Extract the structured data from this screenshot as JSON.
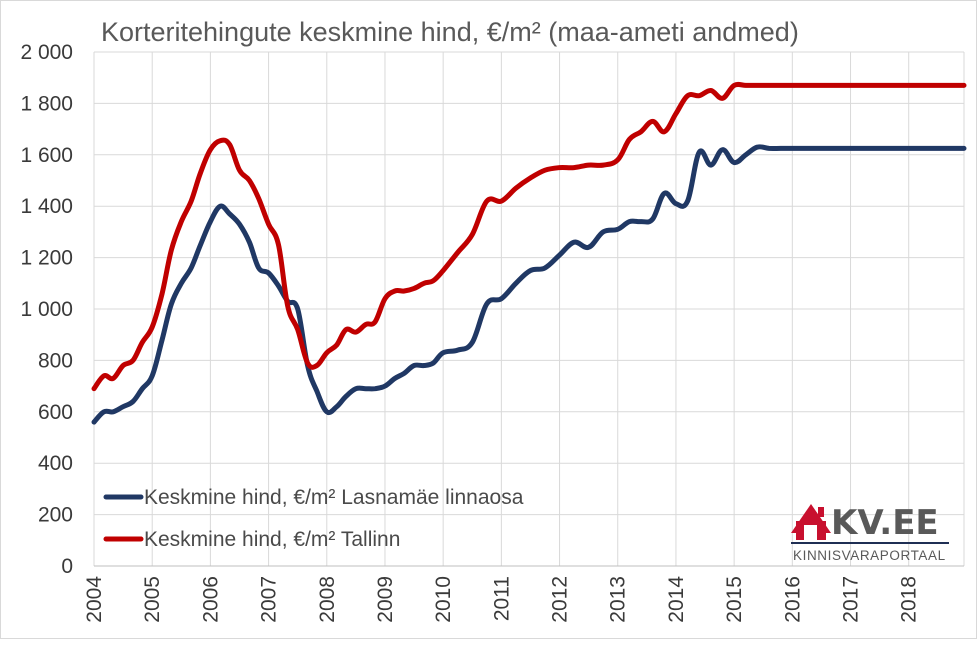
{
  "chart_data": {
    "type": "line",
    "title": "Korteritehingute keskmine hind, €/m² (maa-ameti andmed)",
    "xlabel": "",
    "ylabel": "",
    "ylim": [
      0,
      2000
    ],
    "yticks": [
      0,
      200,
      400,
      600,
      800,
      1000,
      1200,
      1400,
      1600,
      1800,
      2000
    ],
    "ytick_labels": [
      "0",
      "200",
      "400",
      "600",
      "800",
      "1 000",
      "1 200",
      "1 400",
      "1 600",
      "1 800",
      "2 000"
    ],
    "xlim": [
      2004,
      2018.95
    ],
    "xticks": [
      2004,
      2005,
      2006,
      2007,
      2008,
      2009,
      2010,
      2011,
      2012,
      2013,
      2014,
      2015,
      2016,
      2017,
      2018
    ],
    "xtick_labels": [
      "2004",
      "2005",
      "2006",
      "2007",
      "2008",
      "2009",
      "2010",
      "2011",
      "2012",
      "2013",
      "2014",
      "2015",
      "2016",
      "2017",
      "2018"
    ],
    "grid": true,
    "legend_position": "bottom-left",
    "series": [
      {
        "name": "Keskmine hind, €/m² Lasnamäe linnaosa",
        "color": "#203864",
        "x": [
          2004.0,
          2004.17,
          2004.33,
          2004.5,
          2004.67,
          2004.83,
          2005.0,
          2005.17,
          2005.33,
          2005.5,
          2005.67,
          2005.83,
          2006.0,
          2006.17,
          2006.33,
          2006.5,
          2006.67,
          2006.83,
          2007.0,
          2007.17,
          2007.33,
          2007.5,
          2007.67,
          2007.83,
          2008.0,
          2008.17,
          2008.33,
          2008.5,
          2008.67,
          2008.83,
          2009.0,
          2009.17,
          2009.33,
          2009.5,
          2009.67,
          2009.83,
          2010.0,
          2010.25,
          2010.5,
          2010.75,
          2011.0,
          2011.25,
          2011.5,
          2011.75,
          2012.0,
          2012.25,
          2012.5,
          2012.75,
          2013.0,
          2013.2,
          2013.4,
          2013.6,
          2013.8,
          2014.0,
          2014.2,
          2014.4,
          2014.6,
          2014.8,
          2015.0,
          2015.2,
          2015.4,
          2015.6,
          2015.8,
          2016.0,
          2016.2,
          2016.4,
          2016.6,
          2016.8,
          2017.0,
          2017.2,
          2017.4,
          2017.6,
          2017.8,
          2018.0,
          2018.2,
          2018.4,
          2018.6,
          2018.8,
          2018.95
        ],
        "values": [
          560,
          600,
          600,
          620,
          640,
          690,
          740,
          880,
          1020,
          1100,
          1160,
          1250,
          1340,
          1400,
          1370,
          1330,
          1260,
          1160,
          1140,
          1090,
          1030,
          1000,
          780,
          680,
          600,
          620,
          660,
          690,
          690,
          690,
          700,
          730,
          750,
          780,
          780,
          790,
          830,
          840,
          870,
          1020,
          1040,
          1100,
          1150,
          1160,
          1210,
          1260,
          1240,
          1300,
          1310,
          1340,
          1340,
          1350,
          1450,
          1410,
          1420,
          1610,
          1560,
          1620,
          1570,
          1600,
          1630,
          1625,
          1625,
          1625,
          1625,
          1625,
          1625,
          1625,
          1625,
          1625,
          1625,
          1625,
          1625,
          1625,
          1625,
          1625,
          1625,
          1625,
          1625
        ]
      },
      {
        "name": "Keskmine hind, €/m² Tallinn",
        "color": "#c00000",
        "x": [
          2004.0,
          2004.17,
          2004.33,
          2004.5,
          2004.67,
          2004.83,
          2005.0,
          2005.17,
          2005.33,
          2005.5,
          2005.67,
          2005.83,
          2006.0,
          2006.17,
          2006.33,
          2006.5,
          2006.67,
          2006.83,
          2007.0,
          2007.17,
          2007.33,
          2007.5,
          2007.67,
          2007.83,
          2008.0,
          2008.17,
          2008.33,
          2008.5,
          2008.67,
          2008.83,
          2009.0,
          2009.17,
          2009.33,
          2009.5,
          2009.67,
          2009.83,
          2010.0,
          2010.25,
          2010.5,
          2010.75,
          2011.0,
          2011.25,
          2011.5,
          2011.75,
          2012.0,
          2012.25,
          2012.5,
          2012.75,
          2013.0,
          2013.2,
          2013.4,
          2013.6,
          2013.8,
          2014.0,
          2014.2,
          2014.4,
          2014.6,
          2014.8,
          2015.0,
          2015.2,
          2015.4,
          2015.6,
          2015.8,
          2016.0,
          2016.2,
          2016.4,
          2016.6,
          2016.8,
          2017.0,
          2017.2,
          2017.4,
          2017.6,
          2017.8,
          2018.0,
          2018.2,
          2018.4,
          2018.6,
          2018.8,
          2018.95
        ],
        "values": [
          690,
          740,
          730,
          780,
          800,
          870,
          930,
          1060,
          1230,
          1340,
          1420,
          1530,
          1620,
          1655,
          1640,
          1540,
          1500,
          1430,
          1330,
          1250,
          1010,
          920,
          790,
          780,
          830,
          860,
          920,
          910,
          940,
          950,
          1040,
          1070,
          1070,
          1080,
          1100,
          1110,
          1150,
          1220,
          1290,
          1420,
          1420,
          1470,
          1510,
          1540,
          1550,
          1550,
          1560,
          1560,
          1580,
          1660,
          1690,
          1730,
          1690,
          1760,
          1830,
          1830,
          1850,
          1820,
          1870,
          1870,
          1870,
          1870,
          1870,
          1870,
          1870,
          1870,
          1870,
          1870,
          1870,
          1870,
          1870,
          1870,
          1870,
          1870,
          1870,
          1870,
          1870,
          1870,
          1870
        ]
      }
    ]
  },
  "logo": {
    "name": "KV.EE",
    "tagline": "KINNISVARAPORTAAL",
    "colors": {
      "red": "#c8102e",
      "navy": "#1f2f54"
    }
  }
}
